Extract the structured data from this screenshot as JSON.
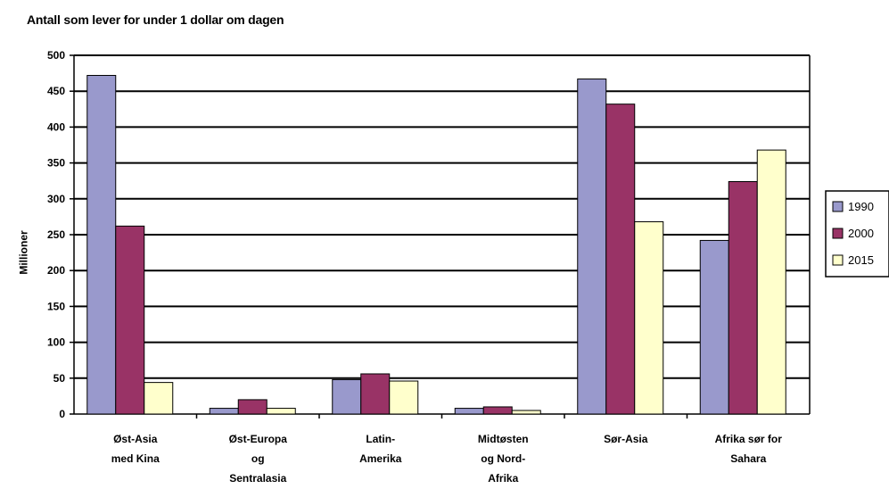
{
  "chart_data": {
    "type": "bar",
    "title": "Antall som lever for under 1 dollar om dagen",
    "ylabel": "Millioner",
    "xlabel": "",
    "ylim": [
      0,
      500
    ],
    "yticks": [
      0,
      50,
      100,
      150,
      200,
      250,
      300,
      350,
      400,
      450,
      500
    ],
    "grid": true,
    "legend_position": "right",
    "categories": [
      [
        "Øst-Asia",
        "med Kina"
      ],
      [
        "Øst-Europa",
        "og",
        "Sentralasia"
      ],
      [
        "Latin-",
        "Amerika"
      ],
      [
        "Midtøsten",
        "og Nord-",
        "Afrika"
      ],
      [
        "Sør-Asia"
      ],
      [
        "Afrika sør for",
        "Sahara"
      ]
    ],
    "series": [
      {
        "name": "1990",
        "color": "#9999cc",
        "values": [
          472,
          8,
          48,
          8,
          467,
          242
        ]
      },
      {
        "name": "2000",
        "color": "#993366",
        "values": [
          262,
          20,
          56,
          10,
          432,
          324
        ]
      },
      {
        "name": "2015",
        "color": "#ffffcc",
        "values": [
          44,
          8,
          46,
          5,
          268,
          368
        ]
      }
    ]
  }
}
